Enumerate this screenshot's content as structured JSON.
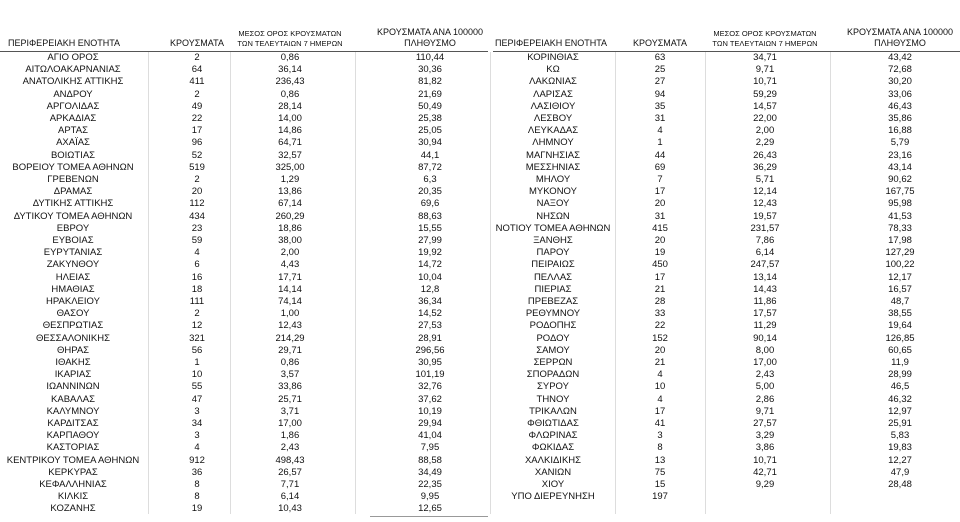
{
  "left": {
    "header": [
      [
        "ΠΕΡΙΦΕΡΕΙΑΚΗ ΕΝΟΤΗΤΑ"
      ],
      [
        "ΚΡΟΥΣΜΑΤΑ"
      ],
      [
        "ΜΕΣΟΣ ΟΡΟΣ ΚΡΟΥΣΜΑΤΩΝ",
        "ΤΩΝ ΤΕΛΕΥΤΑΙΩΝ 7 ΗΜΕΡΩΝ"
      ],
      [
        "ΚΡΟΥΣΜΑΤΑ ΑΝΑ 100000",
        "ΠΛΗΘΥΣΜΟ"
      ]
    ],
    "rows": [
      [
        "ΑΓΙΟ ΟΡΟΣ",
        "2",
        "0,86",
        "110,44"
      ],
      [
        "ΑΙΤΩΛΟΑΚΑΡΝΑΝΙΑΣ",
        "64",
        "36,14",
        "30,36"
      ],
      [
        "ΑΝΑΤΟΛΙΚΗΣ ΑΤΤΙΚΗΣ",
        "411",
        "236,43",
        "81,82"
      ],
      [
        "ΑΝΔΡΟΥ",
        "2",
        "0,86",
        "21,69"
      ],
      [
        "ΑΡΓΟΛΙΔΑΣ",
        "49",
        "28,14",
        "50,49"
      ],
      [
        "ΑΡΚΑΔΙΑΣ",
        "22",
        "14,00",
        "25,38"
      ],
      [
        "ΑΡΤΑΣ",
        "17",
        "14,86",
        "25,05"
      ],
      [
        "ΑΧΑΪΑΣ",
        "96",
        "64,71",
        "30,94"
      ],
      [
        "ΒΟΙΩΤΙΑΣ",
        "52",
        "32,57",
        "44,1"
      ],
      [
        "ΒΟΡΕΙΟΥ ΤΟΜΕΑ ΑΘΗΝΩΝ",
        "519",
        "325,00",
        "87,72"
      ],
      [
        "ΓΡΕΒΕΝΩΝ",
        "2",
        "1,29",
        "6,3"
      ],
      [
        "ΔΡΑΜΑΣ",
        "20",
        "13,86",
        "20,35"
      ],
      [
        "ΔΥΤΙΚΗΣ ΑΤΤΙΚΗΣ",
        "112",
        "67,14",
        "69,6"
      ],
      [
        "ΔΥΤΙΚΟΥ ΤΟΜΕΑ ΑΘΗΝΩΝ",
        "434",
        "260,29",
        "88,63"
      ],
      [
        "ΕΒΡΟΥ",
        "23",
        "18,86",
        "15,55"
      ],
      [
        "ΕΥΒΟΙΑΣ",
        "59",
        "38,00",
        "27,99"
      ],
      [
        "ΕΥΡΥΤΑΝΙΑΣ",
        "4",
        "2,00",
        "19,92"
      ],
      [
        "ΖΑΚΥΝΘΟΥ",
        "6",
        "4,43",
        "14,72"
      ],
      [
        "ΗΛΕΙΑΣ",
        "16",
        "17,71",
        "10,04"
      ],
      [
        "ΗΜΑΘΙΑΣ",
        "18",
        "14,14",
        "12,8"
      ],
      [
        "ΗΡΑΚΛΕΙΟΥ",
        "111",
        "74,14",
        "36,34"
      ],
      [
        "ΘΑΣΟΥ",
        "2",
        "1,00",
        "14,52"
      ],
      [
        "ΘΕΣΠΡΩΤΙΑΣ",
        "12",
        "12,43",
        "27,53"
      ],
      [
        "ΘΕΣΣΑΛΟΝΙΚΗΣ",
        "321",
        "214,29",
        "28,91"
      ],
      [
        "ΘΗΡΑΣ",
        "56",
        "29,71",
        "296,56"
      ],
      [
        "ΙΘΑΚΗΣ",
        "1",
        "0,86",
        "30,95"
      ],
      [
        "ΙΚΑΡΙΑΣ",
        "10",
        "3,57",
        "101,19"
      ],
      [
        "ΙΩΑΝΝΙΝΩΝ",
        "55",
        "33,86",
        "32,76"
      ],
      [
        "ΚΑΒΑΛΑΣ",
        "47",
        "25,71",
        "37,62"
      ],
      [
        "ΚΑΛΥΜΝΟΥ",
        "3",
        "3,71",
        "10,19"
      ],
      [
        "ΚΑΡΔΙΤΣΑΣ",
        "34",
        "17,00",
        "29,94"
      ],
      [
        "ΚΑΡΠΑΘΟΥ",
        "3",
        "1,86",
        "41,04"
      ],
      [
        "ΚΑΣΤΟΡΙΑΣ",
        "4",
        "2,43",
        "7,95"
      ],
      [
        "ΚΕΝΤΡΙΚΟΥ ΤΟΜΕΑ ΑΘΗΝΩΝ",
        "912",
        "498,43",
        "88,58"
      ],
      [
        "ΚΕΡΚΥΡΑΣ",
        "36",
        "26,57",
        "34,49"
      ],
      [
        "ΚΕΦΑΛΛΗΝΙΑΣ",
        "8",
        "7,71",
        "22,35"
      ],
      [
        "ΚΙΛΚΙΣ",
        "8",
        "6,14",
        "9,95"
      ],
      [
        "ΚΟΖΑΝΗΣ",
        "19",
        "10,43",
        "12,65"
      ]
    ]
  },
  "right": {
    "header": [
      [
        "ΠΕΡΙΦΕΡΕΙΑΚΗ ΕΝΟΤΗΤΑ"
      ],
      [
        "ΚΡΟΥΣΜΑΤΑ"
      ],
      [
        "ΜΕΣΟΣ ΟΡΟΣ ΚΡΟΥΣΜΑΤΩΝ",
        "ΤΩΝ ΤΕΛΕΥΤΑΙΩΝ 7 ΗΜΕΡΩΝ"
      ],
      [
        "ΚΡΟΥΣΜΑΤΑ ΑΝΑ 100000",
        "ΠΛΗΘΥΣΜΟ"
      ]
    ],
    "rows": [
      [
        "ΚΟΡΙΝΘΙΑΣ",
        "63",
        "34,71",
        "43,42"
      ],
      [
        "ΚΩ",
        "25",
        "9,71",
        "72,68"
      ],
      [
        "ΛΑΚΩΝΙΑΣ",
        "27",
        "10,71",
        "30,20"
      ],
      [
        "ΛΑΡΙΣΑΣ",
        "94",
        "59,29",
        "33,06"
      ],
      [
        "ΛΑΣΙΘΙΟΥ",
        "35",
        "14,57",
        "46,43"
      ],
      [
        "ΛΕΣΒΟΥ",
        "31",
        "22,00",
        "35,86"
      ],
      [
        "ΛΕΥΚΑΔΑΣ",
        "4",
        "2,00",
        "16,88"
      ],
      [
        "ΛΗΜΝΟΥ",
        "1",
        "2,29",
        "5,79"
      ],
      [
        "ΜΑΓΝΗΣΙΑΣ",
        "44",
        "26,43",
        "23,16"
      ],
      [
        "ΜΕΣΣΗΝΙΑΣ",
        "69",
        "36,29",
        "43,14"
      ],
      [
        "ΜΗΛΟΥ",
        "7",
        "5,71",
        "90,62"
      ],
      [
        "ΜΥΚΟΝΟΥ",
        "17",
        "12,14",
        "167,75"
      ],
      [
        "ΝΑΞΟΥ",
        "20",
        "12,43",
        "95,98"
      ],
      [
        "ΝΗΣΩΝ",
        "31",
        "19,57",
        "41,53"
      ],
      [
        "ΝΟΤΙΟΥ ΤΟΜΕΑ ΑΘΗΝΩΝ",
        "415",
        "231,57",
        "78,33"
      ],
      [
        "ΞΑΝΘΗΣ",
        "20",
        "7,86",
        "17,98"
      ],
      [
        "ΠΑΡΟΥ",
        "19",
        "6,14",
        "127,29"
      ],
      [
        "ΠΕΙΡΑΙΩΣ",
        "450",
        "247,57",
        "100,22"
      ],
      [
        "ΠΕΛΛΑΣ",
        "17",
        "13,14",
        "12,17"
      ],
      [
        "ΠΙΕΡΙΑΣ",
        "21",
        "14,43",
        "16,57"
      ],
      [
        "ΠΡΕΒΕΖΑΣ",
        "28",
        "11,86",
        "48,7"
      ],
      [
        "ΡΕΘΥΜΝΟΥ",
        "33",
        "17,57",
        "38,55"
      ],
      [
        "ΡΟΔΟΠΗΣ",
        "22",
        "11,29",
        "19,64"
      ],
      [
        "ΡΟΔΟΥ",
        "152",
        "90,14",
        "126,85"
      ],
      [
        "ΣΑΜΟΥ",
        "20",
        "8,00",
        "60,65"
      ],
      [
        "ΣΕΡΡΩΝ",
        "21",
        "17,00",
        "11,9"
      ],
      [
        "ΣΠΟΡΑΔΩΝ",
        "4",
        "2,43",
        "28,99"
      ],
      [
        "ΣΥΡΟΥ",
        "10",
        "5,00",
        "46,5"
      ],
      [
        "ΤΗΝΟΥ",
        "4",
        "2,86",
        "46,32"
      ],
      [
        "ΤΡΙΚΑΛΩΝ",
        "17",
        "9,71",
        "12,97"
      ],
      [
        "ΦΘΙΩΤΙΔΑΣ",
        "41",
        "27,57",
        "25,91"
      ],
      [
        "ΦΛΩΡΙΝΑΣ",
        "3",
        "3,29",
        "5,83"
      ],
      [
        "ΦΩΚΙΔΑΣ",
        "8",
        "3,86",
        "19,83"
      ],
      [
        "ΧΑΛΚΙΔΙΚΗΣ",
        "13",
        "10,71",
        "12,27"
      ],
      [
        "ΧΑΝΙΩΝ",
        "75",
        "42,71",
        "47,9"
      ],
      [
        "ΧΙΟΥ",
        "15",
        "9,29",
        "28,48"
      ],
      [
        "ΥΠΟ ΔΙΕΡΕΥΝΗΣΗ",
        "197"
      ]
    ]
  }
}
